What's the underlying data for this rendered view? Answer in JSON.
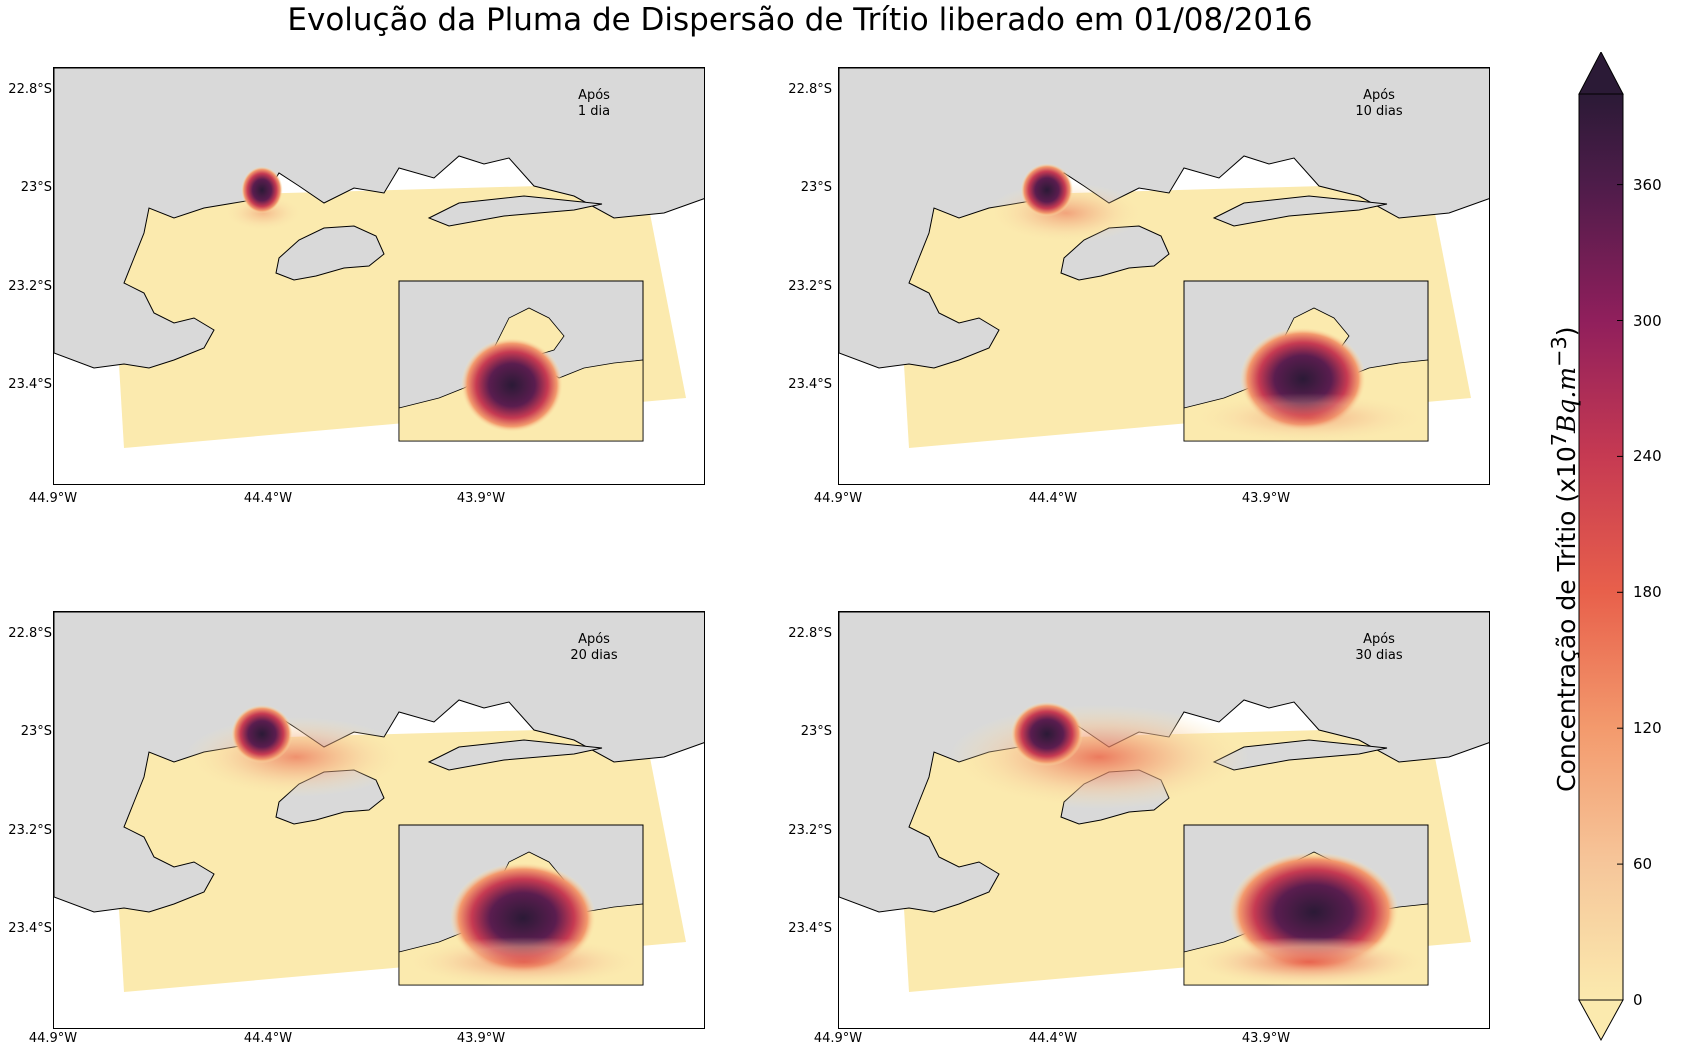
{
  "title": "Evolução da Pluma de Dispersão de Trítio liberado em 01/08/2016",
  "panels": [
    {
      "label_line1": "Após",
      "label_line2": "1 dia",
      "plume_level": 0.15
    },
    {
      "label_line1": "Após",
      "label_line2": "10 dias",
      "plume_level": 0.45
    },
    {
      "label_line1": "Após",
      "label_line2": "20 dias",
      "plume_level": 0.7
    },
    {
      "label_line1": "Após",
      "label_line2": "30 dias",
      "plume_level": 1.0
    }
  ],
  "lat_ticks": [
    "22.8°S",
    "23°S",
    "23.2°S",
    "23.4°S"
  ],
  "lon_ticks": [
    "44.9°W",
    "44.4°W",
    "43.9°W"
  ],
  "colorbar": {
    "label_prefix": "Concentração de Trítio (x10",
    "label_exp": "7",
    "label_unit": "Bq.m",
    "label_unit_exp": "−3",
    "label_suffix": ")",
    "ticks": [
      "0",
      "60",
      "120",
      "180",
      "240",
      "300",
      "360"
    ],
    "min": 0,
    "max": 400,
    "extend": "both",
    "colors": [
      "#fbeaae",
      "#f6b48f",
      "#f37651",
      "#e13342",
      "#ad1759",
      "#701f57",
      "#35193e",
      "#2b1a36"
    ]
  },
  "colors": {
    "land": "#d9d9d9",
    "sea_low": "#fbeaae",
    "ocean_empty": "#ffffff"
  }
}
